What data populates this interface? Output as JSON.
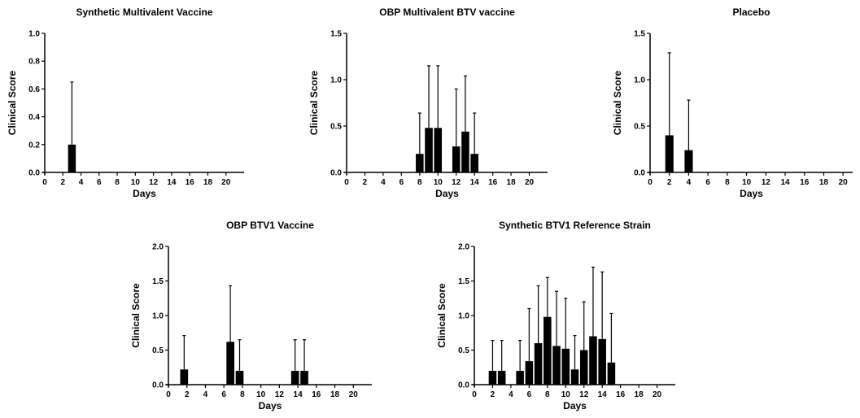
{
  "chart_data": [
    {
      "type": "bar",
      "title": "Synthetic Multivalent Vaccine",
      "xlabel": "Days",
      "ylabel": "Clinical Score",
      "xlim": [
        0,
        22
      ],
      "ylim": [
        0,
        1.0
      ],
      "xticks": [
        0,
        2,
        4,
        6,
        8,
        10,
        12,
        14,
        16,
        18,
        20
      ],
      "yticks": [
        0.0,
        0.2,
        0.4,
        0.6,
        0.8,
        1.0
      ],
      "ytick_labels": [
        "0.0",
        "0.2",
        "0.4",
        "0.6",
        "0.8",
        "1.0"
      ],
      "x": [
        3
      ],
      "values": [
        0.2
      ],
      "error_upper": [
        0.65
      ],
      "grid": false
    },
    {
      "type": "bar",
      "title": "OBP Multivalent BTV vaccine",
      "xlabel": "Days",
      "ylabel": "Clinical Score",
      "xlim": [
        0,
        22
      ],
      "ylim": [
        0,
        1.5
      ],
      "xticks": [
        0,
        2,
        4,
        6,
        8,
        10,
        12,
        14,
        16,
        18,
        20
      ],
      "yticks": [
        0.0,
        0.5,
        1.0,
        1.5
      ],
      "ytick_labels": [
        "0.0",
        "0.5",
        "1.0",
        "1.5"
      ],
      "x": [
        8,
        9,
        10,
        12,
        13,
        14
      ],
      "values": [
        0.2,
        0.48,
        0.48,
        0.28,
        0.44,
        0.2
      ],
      "error_upper": [
        0.64,
        1.15,
        1.15,
        0.9,
        1.04,
        0.64
      ],
      "grid": false
    },
    {
      "type": "bar",
      "title": "Placebo",
      "xlabel": "Days",
      "ylabel": "Clinical Score",
      "xlim": [
        0,
        21
      ],
      "ylim": [
        0,
        1.5
      ],
      "xticks": [
        0,
        2,
        4,
        6,
        8,
        10,
        12,
        14,
        16,
        18,
        20
      ],
      "yticks": [
        0.0,
        0.5,
        1.0,
        1.5
      ],
      "ytick_labels": [
        "0.0",
        "0.5",
        "1.0",
        "1.5"
      ],
      "x": [
        2,
        4
      ],
      "values": [
        0.4,
        0.24
      ],
      "error_upper": [
        1.29,
        0.78
      ],
      "grid": false
    },
    {
      "type": "bar",
      "title": "OBP BTV1 Vaccine",
      "xlabel": "Days",
      "ylabel": "Clinical Score",
      "xlim": [
        0,
        22
      ],
      "ylim": [
        0,
        2.0
      ],
      "xticks": [
        0,
        2,
        4,
        6,
        8,
        10,
        12,
        14,
        16,
        18,
        20
      ],
      "yticks": [
        0.0,
        0.5,
        1.0,
        1.5,
        2.0
      ],
      "ytick_labels": [
        "0.0",
        "0.5",
        "1.0",
        "1.5",
        "2.0"
      ],
      "x": [
        1.7,
        6.7,
        7.7,
        13.7,
        14.7
      ],
      "values": [
        0.22,
        0.62,
        0.2,
        0.2,
        0.2
      ],
      "error_upper": [
        0.71,
        1.43,
        0.65,
        0.65,
        0.65
      ],
      "grid": false
    },
    {
      "type": "bar",
      "title": "Synthetic BTV1 Reference Strain",
      "xlabel": "Days",
      "ylabel": "Clinical Score",
      "xlim": [
        0,
        22
      ],
      "ylim": [
        0,
        2.0
      ],
      "xticks": [
        0,
        2,
        4,
        6,
        8,
        10,
        12,
        14,
        16,
        18,
        20
      ],
      "yticks": [
        0.0,
        0.5,
        1.0,
        1.5,
        2.0
      ],
      "ytick_labels": [
        "0.0",
        "0.5",
        "1.0",
        "1.5",
        "2.0"
      ],
      "x": [
        2,
        3,
        5,
        6,
        7,
        8,
        9,
        10,
        11,
        12,
        13,
        14,
        15
      ],
      "values": [
        0.2,
        0.2,
        0.2,
        0.34,
        0.6,
        0.98,
        0.56,
        0.52,
        0.22,
        0.5,
        0.7,
        0.66,
        0.32
      ],
      "error_upper": [
        0.64,
        0.64,
        0.64,
        1.1,
        1.43,
        1.55,
        1.35,
        1.25,
        0.71,
        1.2,
        1.7,
        1.63,
        1.03
      ],
      "grid": false
    }
  ]
}
